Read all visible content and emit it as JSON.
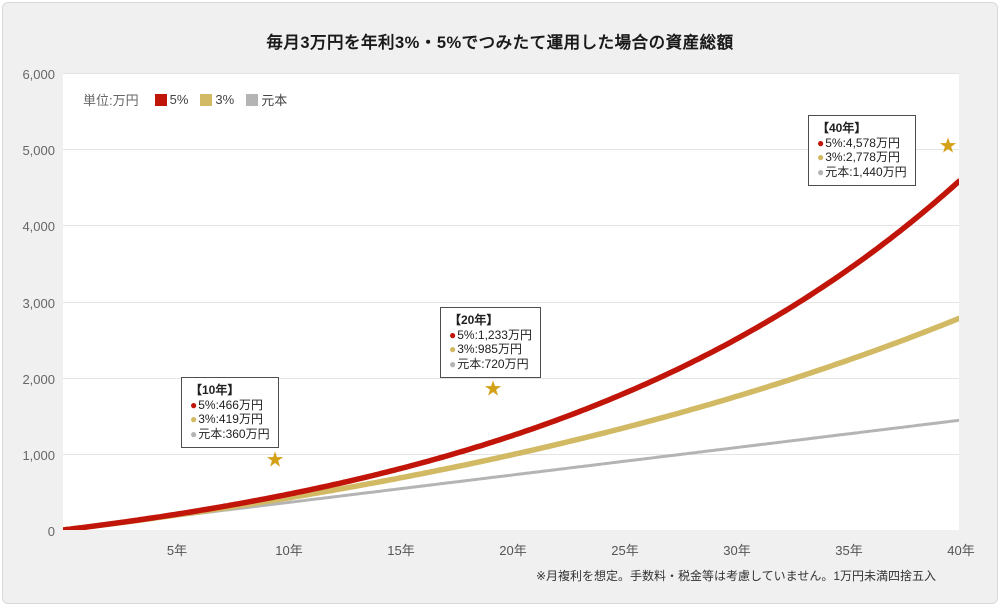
{
  "page": {
    "title": "毎月3万円を年利3%・5%でつみたて運用した場合の資産総額",
    "footnote": "※月複利を想定。手数料・税金等は考慮していません。1万円未満四捨五入"
  },
  "legend": {
    "unit_label": "単位:万円",
    "items": [
      {
        "label": "5%",
        "color": "#c1150a"
      },
      {
        "label": "3%",
        "color": "#d2b964"
      },
      {
        "label": "元本",
        "color": "#b4b4b4"
      }
    ]
  },
  "chart_data": {
    "type": "line",
    "title": "毎月3万円を年利3%・5%でつみたて運用した場合の資産総額",
    "unit": "万円",
    "monthly_amount_man": 3,
    "x_years": [
      5,
      10,
      15,
      20,
      25,
      30,
      35,
      40
    ],
    "x_ticks": [
      "5年",
      "10年",
      "15年",
      "20年",
      "25年",
      "30年",
      "35年",
      "40年"
    ],
    "y_ticks": [
      "0",
      "1,000",
      "2,000",
      "3,000",
      "4,000",
      "5,000",
      "6,000"
    ],
    "ylim": [
      0,
      6000
    ],
    "xlim_years": [
      0,
      40
    ],
    "grid": true,
    "legend_position": "top-left",
    "compounding": "monthly",
    "series": [
      {
        "name": "5%",
        "annual_rate": 0.05,
        "color": "#c1150a",
        "values_at_5yr": [
          204,
          466,
          802,
          1233,
          1787,
          2497,
          3408,
          4578
        ]
      },
      {
        "name": "3%",
        "annual_rate": 0.03,
        "color": "#d2b964",
        "values_at_5yr": [
          194,
          419,
          681,
          985,
          1338,
          1748,
          2225,
          2778
        ]
      },
      {
        "name": "元本",
        "annual_rate": 0.0,
        "color": "#b4b4b4",
        "values_at_5yr": [
          180,
          360,
          540,
          720,
          900,
          1080,
          1260,
          1440
        ]
      }
    ]
  },
  "annotations": [
    {
      "title": "【10年】",
      "rows": [
        {
          "color": "#c1150a",
          "text": "5%:466万円"
        },
        {
          "color": "#d2b964",
          "text": "3%:419万円"
        },
        {
          "color": "#b4b4b4",
          "text": "元本:360万円"
        }
      ]
    },
    {
      "title": "【20年】",
      "rows": [
        {
          "color": "#c1150a",
          "text": "5%:1,233万円"
        },
        {
          "color": "#d2b964",
          "text": "3%:985万円"
        },
        {
          "color": "#b4b4b4",
          "text": "元本:720万円"
        }
      ]
    },
    {
      "title": "【40年】",
      "rows": [
        {
          "color": "#c1150a",
          "text": "5%:4,578万円"
        },
        {
          "color": "#d2b964",
          "text": "3%:2,778万円"
        },
        {
          "color": "#b4b4b4",
          "text": "元本:1,440万円"
        }
      ]
    }
  ],
  "markers": {
    "glyph": "★",
    "color": "#d4a017"
  }
}
